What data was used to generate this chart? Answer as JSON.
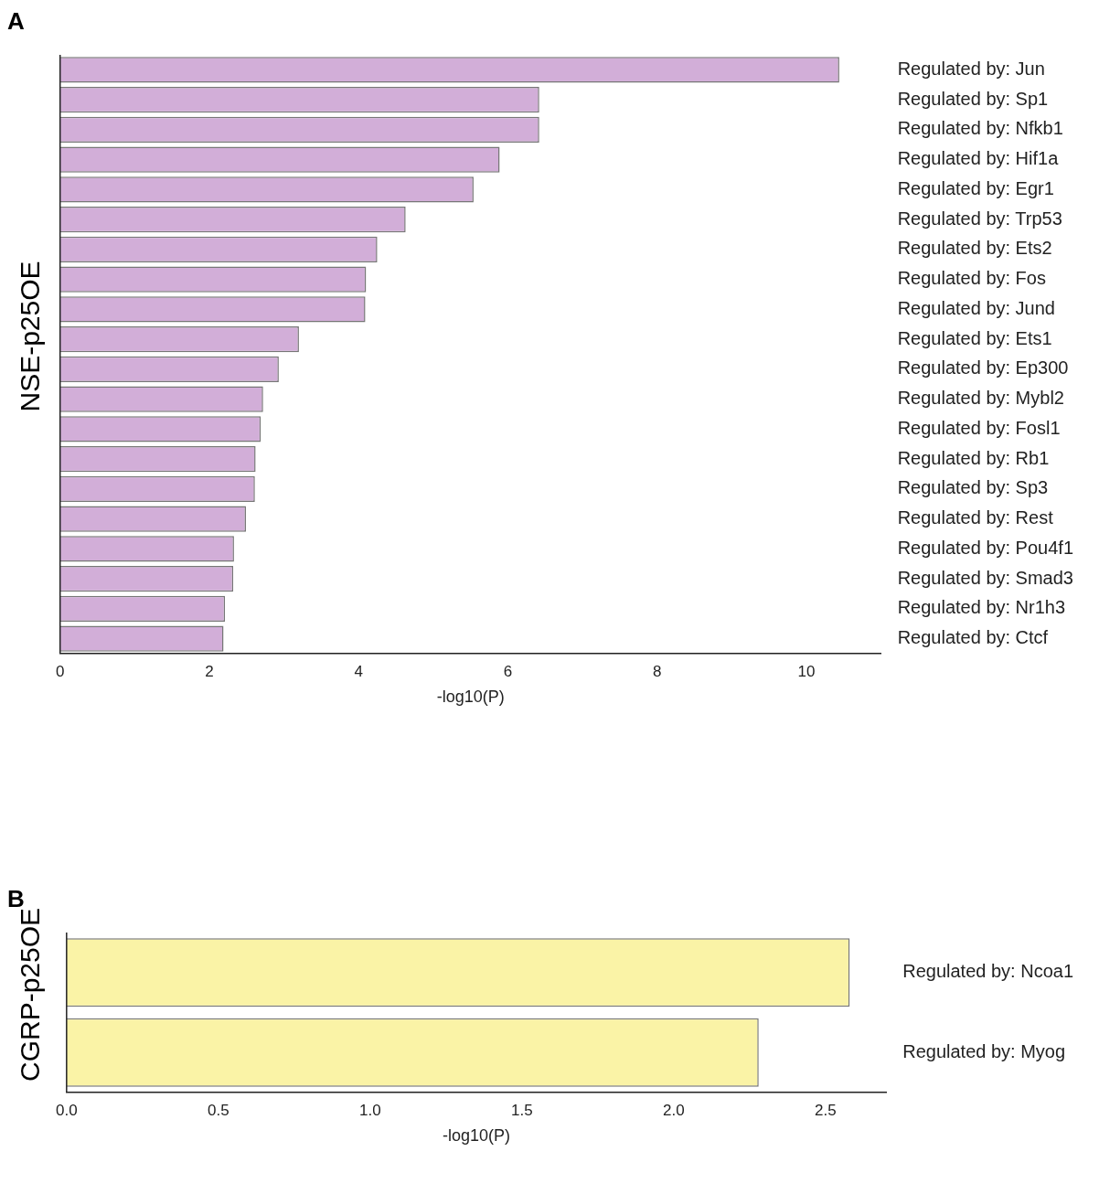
{
  "chart_data": [
    {
      "type": "bar",
      "orientation": "horizontal",
      "annotations": [
        "A"
      ],
      "ylabel": "NSE-p25OE",
      "xlabel": "-log10(P)",
      "categories": [
        "Regulated by: Jun",
        "Regulated by: Sp1",
        "Regulated by: Nfkb1",
        "Regulated by: Hif1a",
        "Regulated by: Egr1",
        "Regulated by: Trp53",
        "Regulated by: Ets2",
        "Regulated by: Fos",
        "Regulated by: Jund",
        "Regulated by: Ets1",
        "Regulated by: Ep300",
        "Regulated by: Mybl2",
        "Regulated by: Fosl1",
        "Regulated by: Rb1",
        "Regulated by: Sp3",
        "Regulated by: Rest",
        "Regulated by: Pou4f1",
        "Regulated by: Smad3",
        "Regulated by: Nr1h3",
        "Regulated by: Ctcf"
      ],
      "values": [
        10.44,
        6.42,
        6.42,
        5.89,
        5.54,
        4.63,
        4.25,
        4.1,
        4.09,
        3.2,
        2.93,
        2.72,
        2.69,
        2.62,
        2.61,
        2.49,
        2.33,
        2.32,
        2.21,
        2.19
      ],
      "color": "#d2aed8",
      "xlim": [
        0,
        11
      ],
      "xticks": [
        0,
        2,
        4,
        6,
        8,
        10
      ],
      "grid": false,
      "legend": false
    },
    {
      "type": "bar",
      "orientation": "horizontal",
      "annotations": [
        "B"
      ],
      "ylabel": "CGRP-p25OE",
      "xlabel": "-log10(P)",
      "categories": [
        "Regulated by: Ncoa1",
        "Regulated by: Myog"
      ],
      "values": [
        2.58,
        2.28
      ],
      "color": "#faf3a6",
      "xlim": [
        0,
        2.7
      ],
      "xticks": [
        {
          "value": 0,
          "label": "0.0"
        },
        0.5,
        {
          "value": 1,
          "label": "1.0"
        },
        1.5,
        {
          "value": 2,
          "label": "2.0"
        },
        2.5
      ],
      "grid": false,
      "legend": false
    }
  ]
}
